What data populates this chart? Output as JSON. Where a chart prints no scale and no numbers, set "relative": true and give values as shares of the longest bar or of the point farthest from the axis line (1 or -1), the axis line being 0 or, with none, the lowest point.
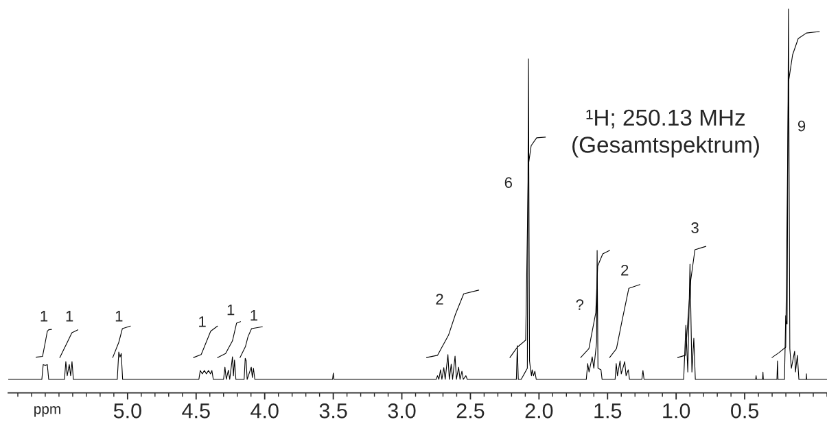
{
  "chart_data": {
    "type": "line",
    "relative": true,
    "title": "¹H; 250.13 MHz\n(Gesamtspektrum)",
    "xlabel": "ppm",
    "xlim": [
      5.87,
      -0.1
    ],
    "xticks": [
      {
        "value": 5.0,
        "label": "5.0"
      },
      {
        "value": 4.5,
        "label": "4.5"
      },
      {
        "value": 4.0,
        "label": "4.0"
      },
      {
        "value": 3.5,
        "label": "3.5"
      },
      {
        "value": 3.0,
        "label": "3.0"
      },
      {
        "value": 2.5,
        "label": "2.5"
      },
      {
        "value": 2.0,
        "label": "2.0"
      },
      {
        "value": 1.5,
        "label": "1.5"
      },
      {
        "value": 1.0,
        "label": "1.0"
      },
      {
        "value": 0.5,
        "label": "0.5"
      }
    ],
    "tick_labels": "x",
    "grid": false,
    "legend": false,
    "line_style": "solid",
    "marker": "none",
    "series": [
      {
        "color": "#000000",
        "x": [
          5.87,
          5.625,
          5.615,
          5.6,
          5.585,
          5.575,
          5.46,
          5.45,
          5.44,
          5.425,
          5.415,
          5.405,
          5.395,
          5.075,
          5.064,
          5.055,
          5.046,
          5.036,
          4.48,
          4.47,
          4.455,
          4.44,
          4.425,
          4.41,
          4.395,
          4.385,
          4.375,
          4.3,
          4.29,
          4.28,
          4.265,
          4.255,
          4.235,
          4.228,
          4.22,
          4.21,
          4.15,
          4.142,
          4.135,
          4.128,
          4.098,
          4.09,
          4.082,
          4.072,
          3.505,
          3.5,
          3.495,
          2.75,
          2.74,
          2.73,
          2.718,
          2.708,
          2.694,
          2.684,
          2.664,
          2.654,
          2.64,
          2.63,
          2.612,
          2.602,
          2.586,
          2.576,
          2.562,
          2.552,
          2.533,
          2.523,
          2.165,
          2.158,
          2.151,
          2.13,
          2.085,
          2.077,
          2.069,
          2.062,
          2.055,
          2.05,
          2.04,
          2.03,
          2.02,
          1.655,
          1.645,
          1.635,
          1.612,
          1.6,
          1.58,
          1.576,
          1.57,
          1.548,
          1.54,
          1.445,
          1.437,
          1.428,
          1.409,
          1.4,
          1.375,
          1.365,
          1.349,
          1.34,
          1.25,
          1.242,
          1.234,
          0.945,
          0.929,
          0.915,
          0.899,
          0.885,
          0.871,
          0.86,
          0.42,
          0.417,
          0.414,
          0.37,
          0.367,
          0.364,
          0.265,
          0.261,
          0.257,
          0.21,
          0.201,
          0.195,
          0.191,
          0.181,
          0.171,
          0.16,
          0.136,
          0.13,
          0.116,
          0.105,
          0.052,
          0.05,
          0.048,
          -0.1
        ],
        "values": [
          0,
          0,
          0.04,
          0.038,
          0.04,
          0,
          0,
          0.048,
          0.01,
          0.04,
          0.01,
          0.048,
          0,
          0,
          0.074,
          0.06,
          0.07,
          0,
          0,
          0.024,
          0.015,
          0.024,
          0.015,
          0.024,
          0.015,
          0.024,
          0,
          0,
          0.033,
          0,
          0.025,
          0,
          0.061,
          0.01,
          0.052,
          0,
          0,
          0.057,
          0.05,
          0,
          0.033,
          0.005,
          0.03,
          0,
          0,
          0.017,
          0,
          0,
          0.01,
          0,
          0.026,
          0,
          0.032,
          0,
          0.067,
          0,
          0.041,
          0,
          0.063,
          0,
          0.033,
          0,
          0.022,
          0,
          0.01,
          0,
          0,
          0.091,
          0,
          0,
          0.03,
          0.865,
          0.05,
          0.028,
          0.01,
          0.026,
          0.01,
          0.022,
          0,
          0,
          0.043,
          0.02,
          0.061,
          0.03,
          0.1,
          0.348,
          0.03,
          0.026,
          0,
          0,
          0.043,
          0.01,
          0.05,
          0.015,
          0.048,
          0.01,
          0.026,
          0,
          0,
          0.024,
          0,
          0,
          0.146,
          0.02,
          0.311,
          0.02,
          0.111,
          0,
          0,
          0.01,
          0,
          0,
          0.02,
          0,
          0,
          0.05,
          0,
          0,
          0.172,
          0.15,
          0.15,
          1.0,
          0.083,
          0.03,
          0.076,
          0.02,
          0.065,
          0,
          0,
          0.015,
          0,
          0
        ]
      },
      {
        "color": "#000000",
        "x": [
          5.667,
          5.62,
          5.6,
          5.585,
          5.575,
          5.554
        ],
        "values": [
          0.06,
          0.062,
          0.1,
          0.13,
          0.134,
          0.135
        ]
      },
      {
        "color": "#000000",
        "x": [
          5.494,
          5.445,
          5.406,
          5.362
        ],
        "values": [
          0.059,
          0.096,
          0.126,
          0.134
        ]
      },
      {
        "color": "#000000",
        "x": [
          5.108,
          5.064,
          5.038,
          4.979
        ],
        "values": [
          0.059,
          0.1,
          0.137,
          0.144
        ]
      },
      {
        "color": "#000000",
        "x": [
          4.519,
          4.463,
          4.394,
          4.344
        ],
        "values": [
          0.059,
          0.067,
          0.13,
          0.144
        ]
      },
      {
        "color": "#000000",
        "x": [
          4.344,
          4.285,
          4.235,
          4.205,
          4.176
        ],
        "values": [
          0.059,
          0.07,
          0.104,
          0.152,
          0.156
        ]
      },
      {
        "color": "#000000",
        "x": [
          4.18,
          4.14,
          4.122,
          4.096,
          4.017
        ],
        "values": [
          0.059,
          0.089,
          0.115,
          0.137,
          0.142
        ]
      },
      {
        "color": "#000000",
        "x": [
          2.82,
          2.74,
          2.659,
          2.609,
          2.549,
          2.439
        ],
        "values": [
          0.059,
          0.065,
          0.12,
          0.176,
          0.231,
          0.241
        ]
      },
      {
        "color": "#000000",
        "x": [
          2.212,
          2.158,
          2.097,
          2.077,
          2.057,
          2.017,
          1.953
        ],
        "values": [
          0.059,
          0.087,
          0.106,
          0.58,
          0.631,
          0.652,
          0.654
        ]
      },
      {
        "color": "#000000",
        "x": [
          1.696,
          1.636,
          1.586,
          1.572,
          1.535,
          1.485
        ],
        "values": [
          0.059,
          0.083,
          0.18,
          0.306,
          0.339,
          0.348
        ]
      },
      {
        "color": "#000000",
        "x": [
          1.485,
          1.435,
          1.395,
          1.345,
          1.264
        ],
        "values": [
          0.059,
          0.083,
          0.157,
          0.246,
          0.256
        ]
      },
      {
        "color": "#000000",
        "x": [
          0.989,
          0.933,
          0.893,
          0.863,
          0.783
        ],
        "values": [
          0.059,
          0.065,
          0.269,
          0.35,
          0.359
        ]
      },
      {
        "color": "#000000",
        "x": [
          0.301,
          0.251,
          0.201,
          0.181,
          0.151,
          0.11,
          0.05,
          -0.045
        ],
        "values": [
          0.059,
          0.072,
          0.087,
          0.802,
          0.876,
          0.92,
          0.935,
          0.939
        ]
      }
    ],
    "annotations": [
      "1",
      "1",
      "1",
      "1",
      "1",
      "1",
      "2",
      "6",
      "?",
      "2",
      "3",
      "9"
    ]
  }
}
